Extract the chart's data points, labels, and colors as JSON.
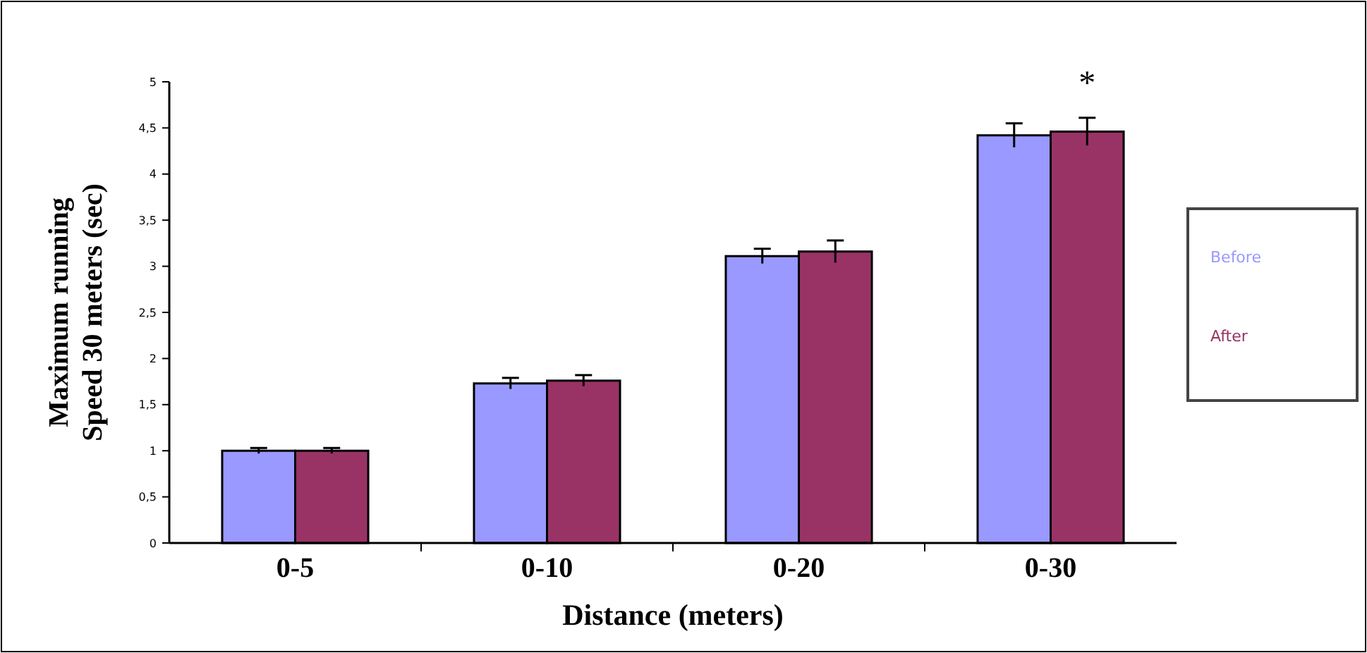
{
  "chart_data": {
    "type": "bar",
    "xlabel": "Distance (meters)",
    "ylabel": "Maximum running\nSpeed 30 meters (sec)",
    "categories": [
      "0-5",
      "0-10",
      "0-20",
      "0-30"
    ],
    "series": [
      {
        "name": "Before",
        "color": "#9999ff",
        "values": [
          1.0,
          1.73,
          3.11,
          4.42
        ],
        "errors": [
          0.03,
          0.06,
          0.08,
          0.13
        ]
      },
      {
        "name": "After",
        "color": "#993366",
        "values": [
          1.0,
          1.76,
          3.16,
          4.46
        ],
        "errors": [
          0.03,
          0.06,
          0.12,
          0.15
        ]
      }
    ],
    "ylim": [
      0,
      5
    ],
    "yticks": [
      0,
      {
        "value": 0.5,
        "label": "0,5"
      },
      1,
      {
        "value": 1.5,
        "label": "1,5"
      },
      2,
      {
        "value": 2.5,
        "label": "2,5"
      },
      3,
      {
        "value": 3.5,
        "label": "3,5"
      },
      4,
      {
        "value": 4.5,
        "label": "4,5"
      },
      5
    ],
    "annotations": [
      "*"
    ],
    "legend": "right"
  }
}
